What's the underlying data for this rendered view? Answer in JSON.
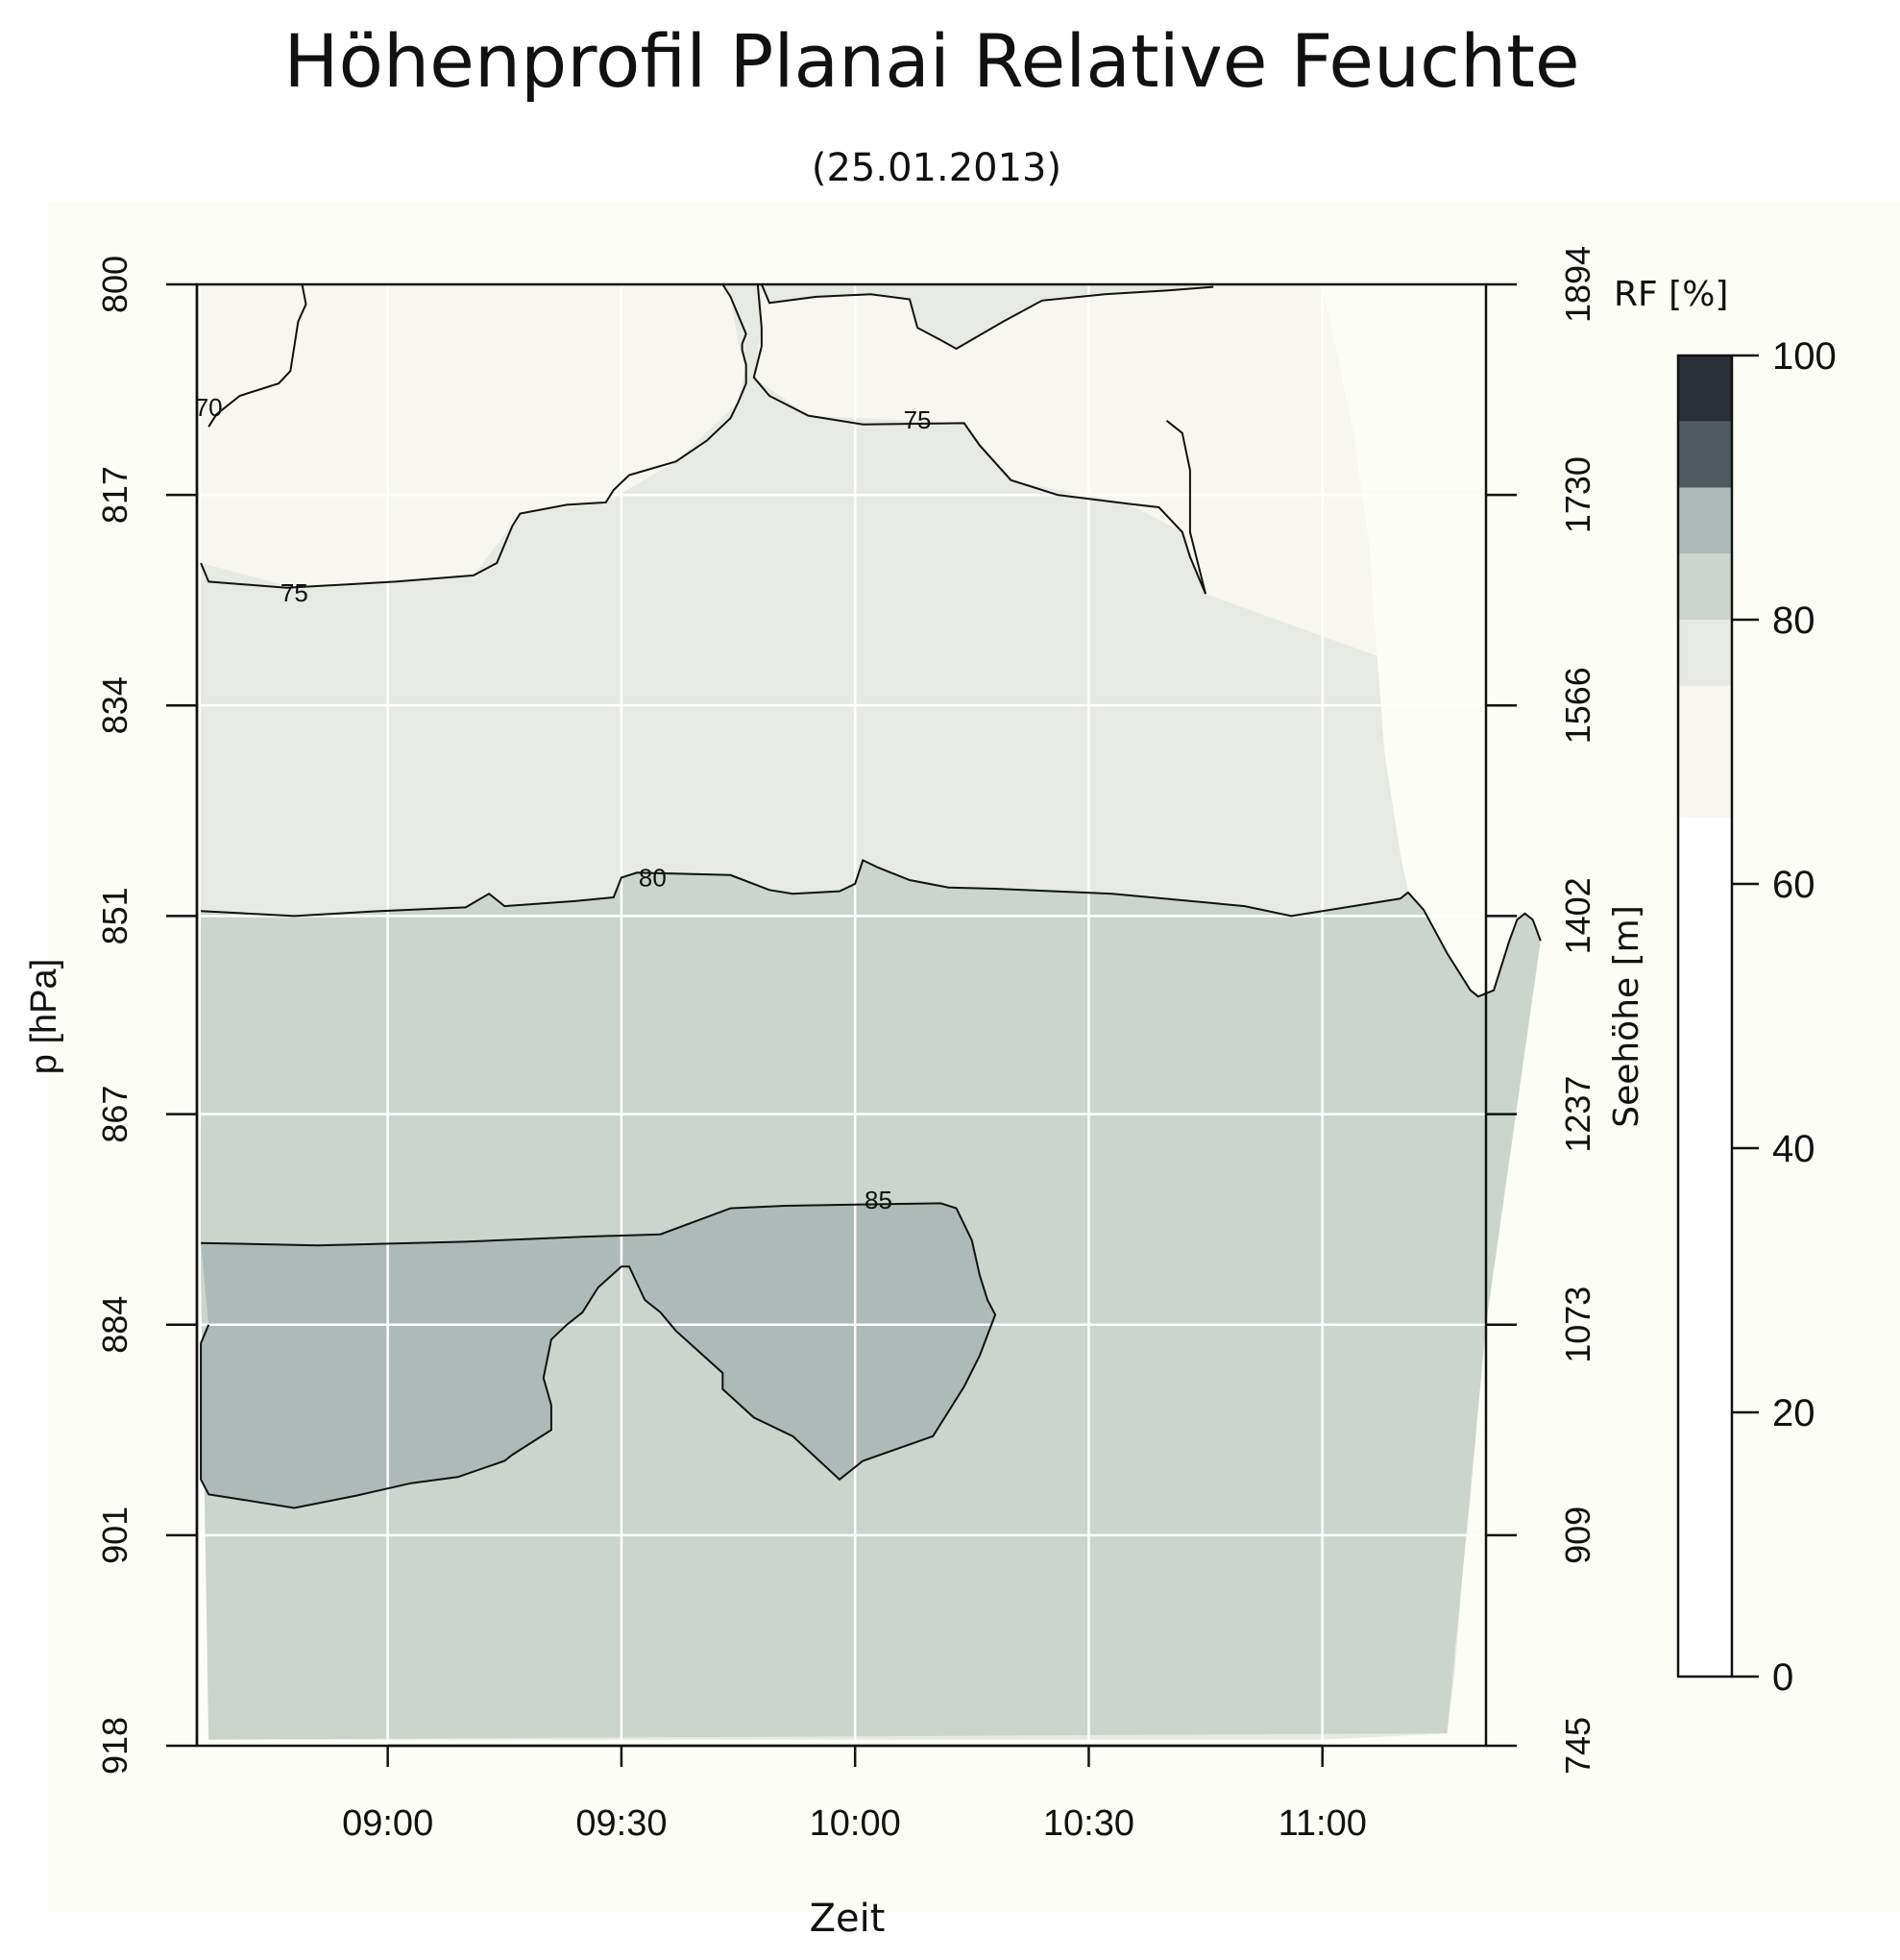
{
  "chart_data": {
    "type": "heatmap",
    "title": "Höhenprofil Planai Relative Feuchte",
    "subtitle": "(25.01.2013)",
    "xlabel": "Zeit",
    "ylabel": "p [hPa]",
    "ylabel_right": "Seehöhe [m]",
    "x_ticks": [
      "09:00",
      "09:30",
      "10:00",
      "10:30",
      "11:00"
    ],
    "x_tick_values_min": [
      540,
      570,
      600,
      630,
      660
    ],
    "xlim_min": [
      515.5,
      681
    ],
    "y_ticks": [
      "800",
      "817",
      "834",
      "851",
      "867",
      "884",
      "901",
      "918"
    ],
    "ylim": [
      800,
      918
    ],
    "y_ticks_right": [
      "1894",
      "1730",
      "1566",
      "1402",
      "1237",
      "1073",
      "909",
      "745"
    ],
    "colorbar": {
      "label": "RF [%]",
      "ticks": [
        "0",
        "20",
        "40",
        "60",
        "80",
        "100"
      ],
      "bands": [
        {
          "from": 0,
          "to": 65,
          "color": "#ffffff"
        },
        {
          "from": 65,
          "to": 75,
          "color": "#f7f6f0"
        },
        {
          "from": 75,
          "to": 80,
          "color": "#e7e9e4"
        },
        {
          "from": 80,
          "to": 85,
          "color": "#cbd5ce"
        },
        {
          "from": 85,
          "to": 90,
          "color": "#aebab7"
        },
        {
          "from": 90,
          "to": 95,
          "color": "#4f5960"
        },
        {
          "from": 95,
          "to": 100,
          "color": "#2a2e35"
        }
      ]
    },
    "contour_labels": [
      {
        "text": "70",
        "x": 517,
        "y": 810
      },
      {
        "text": "75",
        "x": 528,
        "y": 825
      },
      {
        "text": "75",
        "x": 608,
        "y": 811
      },
      {
        "text": "80",
        "x": 574,
        "y": 848
      },
      {
        "text": "85",
        "x": 603,
        "y": 874
      }
    ],
    "contours": [
      {
        "level": 75,
        "points": [
          [
            516,
            822.5
          ],
          [
            517,
            824
          ],
          [
            527,
            824.5
          ],
          [
            541,
            824
          ],
          [
            551,
            823.5
          ],
          [
            554,
            822.5
          ],
          [
            556,
            819.5
          ],
          [
            557,
            818.5
          ],
          [
            563,
            817.8
          ],
          [
            568,
            817.6
          ],
          [
            569,
            816.6
          ],
          [
            571,
            815.4
          ],
          [
            577,
            814.3
          ],
          [
            581,
            812.6
          ],
          [
            584,
            810.8
          ],
          [
            585,
            809.5
          ],
          [
            586,
            808
          ],
          [
            586,
            806.5
          ],
          [
            585.5,
            805.3
          ],
          [
            585.5,
            804.8
          ],
          [
            586,
            804
          ],
          [
            584,
            801
          ],
          [
            583,
            800
          ]
        ]
      },
      {
        "level": 75,
        "points": [
          [
            587.5,
            800
          ],
          [
            588,
            803.5
          ],
          [
            588,
            805
          ],
          [
            587,
            807.5
          ],
          [
            589,
            809
          ],
          [
            594,
            810.6
          ],
          [
            601,
            811.3
          ],
          [
            614,
            811.2
          ],
          [
            616,
            813
          ],
          [
            620,
            815.8
          ],
          [
            626,
            817
          ],
          [
            635,
            817.7
          ],
          [
            639,
            818
          ],
          [
            642,
            820
          ],
          [
            643,
            822
          ],
          [
            645,
            825
          ],
          [
            643,
            820
          ],
          [
            643,
            815
          ],
          [
            642,
            812
          ],
          [
            640,
            811
          ]
        ]
      },
      {
        "level": 75,
        "points": [
          [
            588,
            800
          ],
          [
            589,
            801.5
          ],
          [
            595,
            801
          ],
          [
            602,
            800.8
          ],
          [
            607,
            801.2
          ],
          [
            608,
            803.5
          ],
          [
            611,
            804.5
          ],
          [
            613,
            805.2
          ],
          [
            619,
            803
          ],
          [
            624,
            801.3
          ],
          [
            632,
            800.8
          ],
          [
            640,
            800.5
          ],
          [
            646,
            800.2
          ]
        ]
      },
      {
        "level": 70,
        "points": [
          [
            529,
            800
          ],
          [
            529.5,
            801.6
          ],
          [
            528.5,
            803
          ],
          [
            528,
            805
          ],
          [
            527.5,
            807
          ],
          [
            526,
            808
          ],
          [
            521,
            809
          ],
          [
            518,
            810.5
          ],
          [
            517,
            811.5
          ]
        ]
      },
      {
        "level": 80,
        "points": [
          [
            516,
            850.6
          ],
          [
            528,
            851
          ],
          [
            539,
            850.6
          ],
          [
            550,
            850.3
          ],
          [
            553,
            849.2
          ],
          [
            555,
            850.2
          ],
          [
            564,
            849.8
          ],
          [
            569,
            849.5
          ],
          [
            570,
            847.9
          ],
          [
            572,
            847.5
          ],
          [
            584,
            847.7
          ],
          [
            589,
            848.9
          ],
          [
            592,
            849.2
          ],
          [
            598,
            849
          ],
          [
            600,
            848.4
          ],
          [
            601,
            846.5
          ],
          [
            603,
            847.1
          ],
          [
            607,
            848.1
          ],
          [
            612,
            848.7
          ],
          [
            618,
            848.8
          ],
          [
            633,
            849.2
          ],
          [
            650,
            850.2
          ],
          [
            656,
            851
          ],
          [
            670,
            849.6
          ],
          [
            671,
            849.1
          ],
          [
            673,
            850.5
          ],
          [
            676,
            854
          ],
          [
            679,
            857
          ],
          [
            680,
            857.5
          ],
          [
            682,
            857
          ],
          [
            683,
            855
          ],
          [
            684,
            853
          ],
          [
            685,
            851.3
          ],
          [
            686,
            850.8
          ],
          [
            687,
            851.3
          ],
          [
            688,
            853
          ]
        ]
      },
      {
        "level": 85,
        "points": [
          [
            516,
            877.4
          ],
          [
            531,
            877.6
          ],
          [
            550,
            877.3
          ],
          [
            565,
            876.9
          ],
          [
            575,
            876.7
          ],
          [
            584,
            874.6
          ],
          [
            591,
            874.4
          ],
          [
            600,
            874.3
          ],
          [
            611,
            874.2
          ],
          [
            613,
            874.6
          ],
          [
            615,
            877.2
          ],
          [
            616,
            880
          ],
          [
            617,
            882
          ],
          [
            618,
            883.2
          ],
          [
            616,
            886.5
          ],
          [
            614,
            889
          ],
          [
            613,
            890
          ],
          [
            611,
            892
          ],
          [
            610,
            893
          ],
          [
            601,
            895
          ],
          [
            598,
            896.5
          ],
          [
            592,
            893
          ],
          [
            587,
            891.5
          ],
          [
            583,
            889.2
          ],
          [
            583,
            887.9
          ],
          [
            577,
            884.5
          ],
          [
            575,
            883
          ],
          [
            573,
            882
          ],
          [
            571,
            879.3
          ],
          [
            570,
            879.3
          ],
          [
            567,
            881
          ],
          [
            565,
            883
          ],
          [
            563,
            884
          ],
          [
            561,
            885.2
          ],
          [
            560,
            888.3
          ],
          [
            561,
            890.5
          ],
          [
            561,
            892.5
          ],
          [
            556,
            894.5
          ],
          [
            555,
            895
          ],
          [
            549,
            896.3
          ],
          [
            543,
            896.8
          ],
          [
            536,
            897.8
          ],
          [
            528,
            898.8
          ],
          [
            517,
            897.7
          ],
          [
            516,
            896.5
          ],
          [
            516,
            885.5
          ],
          [
            517,
            884
          ]
        ]
      }
    ]
  }
}
